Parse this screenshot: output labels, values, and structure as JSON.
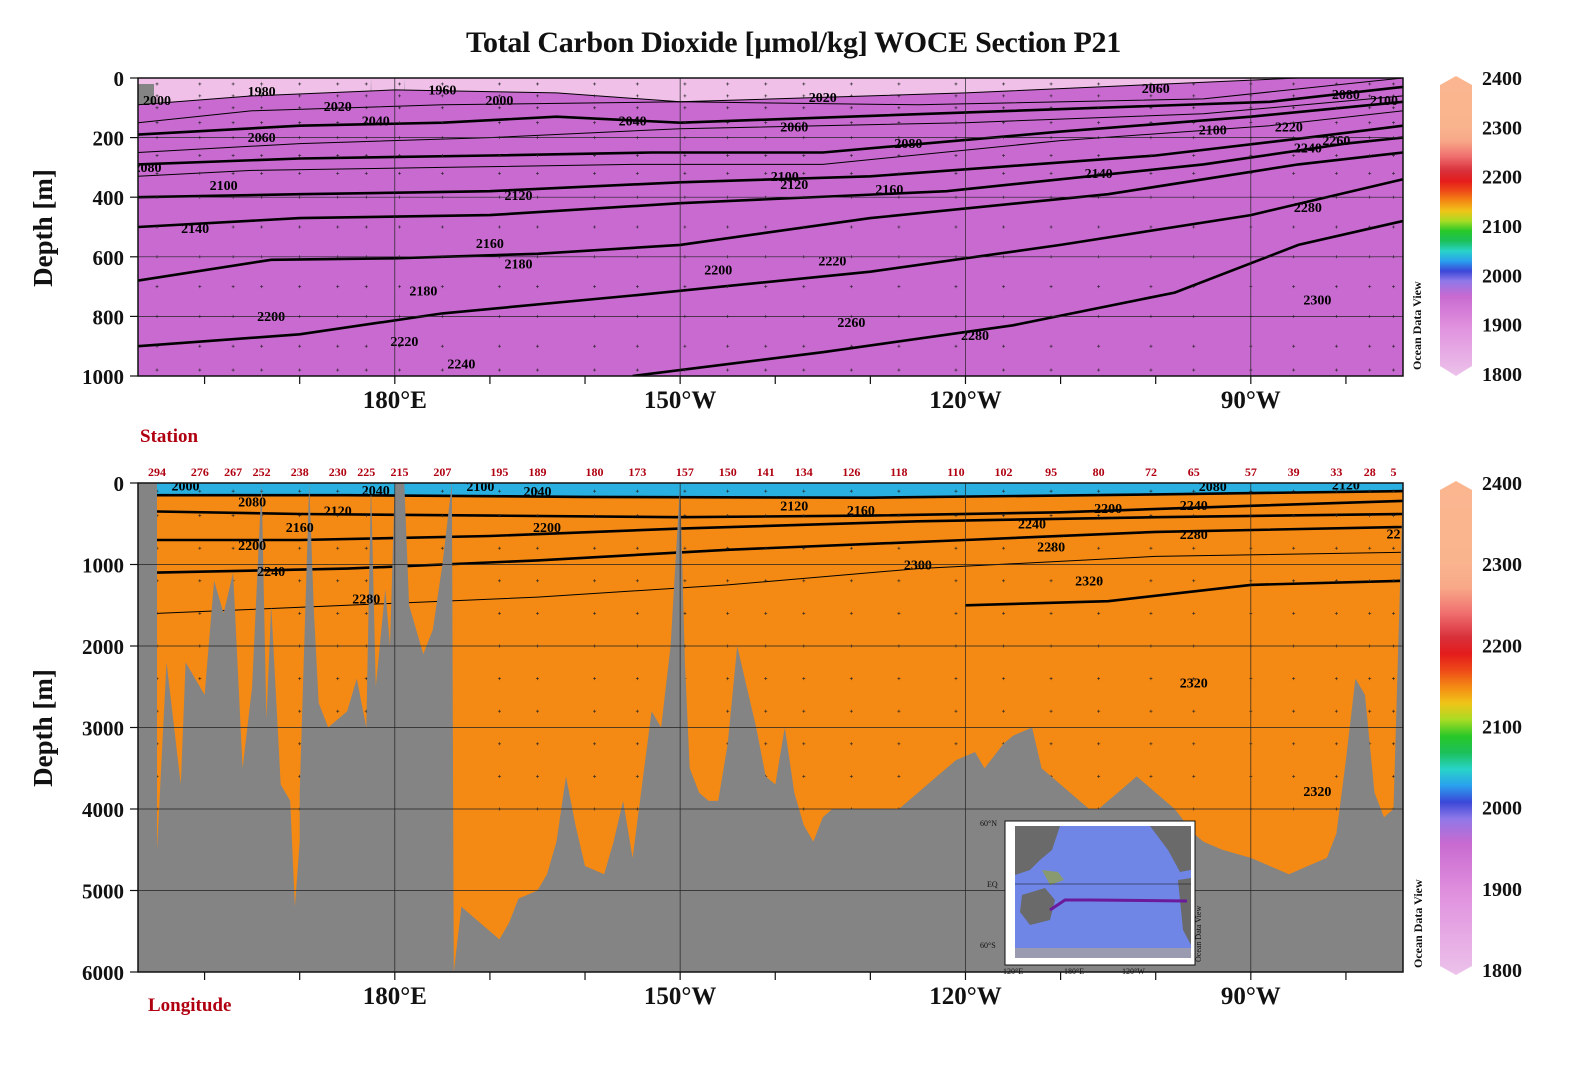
{
  "title": "Total Carbon Dioxide [µmol/kg]  WOCE Section P21",
  "watermark": "Ocean Data View",
  "colors": {
    "land": "#848484",
    "scale": [
      [
        1800,
        "#ecc2ea"
      ],
      [
        1900,
        "#e090de"
      ],
      [
        1960,
        "#c86ad0"
      ],
      [
        1990,
        "#8f78e8"
      ],
      [
        2010,
        "#3a48d8"
      ],
      [
        2030,
        "#2aa0ee"
      ],
      [
        2050,
        "#28d4c8"
      ],
      [
        2070,
        "#1cc05a"
      ],
      [
        2090,
        "#28c828"
      ],
      [
        2110,
        "#a8dc24"
      ],
      [
        2130,
        "#f0c418"
      ],
      [
        2150,
        "#f48a14"
      ],
      [
        2170,
        "#ee4a18"
      ],
      [
        2190,
        "#e41c1c"
      ],
      [
        2210,
        "#d8303a"
      ],
      [
        2240,
        "#f07070"
      ],
      [
        2270,
        "#f8a888"
      ],
      [
        2300,
        "#f9b48e"
      ],
      [
        2400,
        "#fbb690"
      ]
    ]
  },
  "chart_data": [
    {
      "type": "heatmap",
      "panel": "top",
      "ylabel": "Depth [m]",
      "xlabel": "",
      "y_ticks": [
        0,
        200,
        400,
        600,
        800,
        1000
      ],
      "ylim": [
        1000,
        0
      ],
      "x_ticks": [
        "180°E",
        "150°W",
        "120°W",
        "90°W"
      ],
      "x_tick_values": [
        180,
        210,
        240,
        270
      ],
      "xlim": [
        153,
        286
      ],
      "colorbar": {
        "ticks": [
          1800,
          1900,
          2000,
          2100,
          2200,
          2300,
          2400
        ],
        "range": [
          1800,
          2400
        ]
      },
      "isolines": [
        {
          "value": 1980,
          "points": [
            [
              153,
              90
            ],
            [
              165,
              60
            ],
            [
              180,
              40
            ],
            [
              197,
              50
            ],
            [
              210,
              80
            ],
            [
              240,
              50
            ],
            [
              275,
              0
            ]
          ]
        },
        {
          "value": 2020,
          "points": [
            [
              153,
              150
            ],
            [
              165,
              110
            ],
            [
              185,
              90
            ],
            [
              210,
              80
            ],
            [
              235,
              90
            ],
            [
              265,
              70
            ],
            [
              286,
              0
            ]
          ]
        },
        {
          "value": 2040,
          "points": [
            [
              153,
              190
            ],
            [
              170,
              160
            ],
            [
              185,
              150
            ],
            [
              197,
              130
            ],
            [
              210,
              150
            ],
            [
              245,
              110
            ],
            [
              272,
              80
            ],
            [
              286,
              30
            ]
          ]
        },
        {
          "value": 2060,
          "points": [
            [
              153,
              250
            ],
            [
              170,
              220
            ],
            [
              190,
              200
            ],
            [
              210,
              170
            ],
            [
              240,
              150
            ],
            [
              265,
              120
            ],
            [
              286,
              60
            ]
          ]
        },
        {
          "value": 2080,
          "points": [
            [
              153,
              290
            ],
            [
              170,
              270
            ],
            [
              190,
              260
            ],
            [
              207,
              250
            ],
            [
              225,
              250
            ],
            [
              250,
              180
            ],
            [
              270,
              130
            ],
            [
              286,
              80
            ]
          ]
        },
        {
          "value": 2100,
          "points": [
            [
              153,
              330
            ],
            [
              165,
              310
            ],
            [
              185,
              300
            ],
            [
              205,
              290
            ],
            [
              225,
              290
            ],
            [
              250,
              210
            ],
            [
              272,
              160
            ],
            [
              286,
              110
            ]
          ]
        },
        {
          "value": 2120,
          "points": [
            [
              153,
              400
            ],
            [
              170,
              390
            ],
            [
              190,
              380
            ],
            [
              210,
              350
            ],
            [
              230,
              330
            ],
            [
              260,
              260
            ],
            [
              276,
              200
            ],
            [
              286,
              160
            ]
          ]
        },
        {
          "value": 2160,
          "points": [
            [
              153,
              500
            ],
            [
              170,
              470
            ],
            [
              190,
              460
            ],
            [
              210,
              420
            ],
            [
              238,
              380
            ],
            [
              265,
              290
            ],
            [
              280,
              220
            ],
            [
              286,
              200
            ]
          ]
        },
        {
          "value": 2200,
          "points": [
            [
              153,
              680
            ],
            [
              167,
              610
            ],
            [
              180,
              605
            ],
            [
              195,
              590
            ],
            [
              210,
              560
            ],
            [
              230,
              470
            ],
            [
              255,
              390
            ],
            [
              275,
              290
            ],
            [
              286,
              250
            ]
          ]
        },
        {
          "value": 2240,
          "points": [
            [
              153,
              900
            ],
            [
              170,
              860
            ],
            [
              185,
              790
            ],
            [
              205,
              730
            ],
            [
              230,
              650
            ],
            [
              250,
              560
            ],
            [
              270,
              460
            ],
            [
              286,
              340
            ]
          ]
        },
        {
          "value": 2280,
          "points": [
            [
              205,
              1000
            ],
            [
              225,
              920
            ],
            [
              245,
              830
            ],
            [
              262,
              720
            ],
            [
              275,
              560
            ],
            [
              286,
              480
            ]
          ]
        }
      ],
      "contour_labels": [
        {
          "text": "1980",
          "x": 166,
          "y": 60
        },
        {
          "text": "1960",
          "x": 185,
          "y": 55
        },
        {
          "text": "2000",
          "x": 155,
          "y": 90
        },
        {
          "text": "2000",
          "x": 191,
          "y": 90
        },
        {
          "text": "2020",
          "x": 174,
          "y": 110
        },
        {
          "text": "2040",
          "x": 178,
          "y": 160
        },
        {
          "text": "2020",
          "x": 225,
          "y": 80
        },
        {
          "text": "2060",
          "x": 260,
          "y": 50
        },
        {
          "text": "2060",
          "x": 166,
          "y": 215
        },
        {
          "text": "2040",
          "x": 205,
          "y": 160
        },
        {
          "text": "2060",
          "x": 222,
          "y": 180
        },
        {
          "text": "2080",
          "x": 234,
          "y": 235
        },
        {
          "text": "2080",
          "x": 154,
          "y": 315
        },
        {
          "text": "2100",
          "x": 162,
          "y": 375
        },
        {
          "text": "2100",
          "x": 221,
          "y": 345
        },
        {
          "text": "2120",
          "x": 222,
          "y": 372
        },
        {
          "text": "2100",
          "x": 266,
          "y": 190
        },
        {
          "text": "2120",
          "x": 193,
          "y": 410
        },
        {
          "text": "2140",
          "x": 159,
          "y": 520
        },
        {
          "text": "2140",
          "x": 254,
          "y": 335
        },
        {
          "text": "2160",
          "x": 232,
          "y": 390
        },
        {
          "text": "2160",
          "x": 190,
          "y": 570
        },
        {
          "text": "2180",
          "x": 193,
          "y": 640
        },
        {
          "text": "2180",
          "x": 183,
          "y": 730
        },
        {
          "text": "2200",
          "x": 214,
          "y": 660
        },
        {
          "text": "2200",
          "x": 167,
          "y": 815
        },
        {
          "text": "2220",
          "x": 226,
          "y": 630
        },
        {
          "text": "2220",
          "x": 181,
          "y": 900
        },
        {
          "text": "2240",
          "x": 187,
          "y": 975
        },
        {
          "text": "2260",
          "x": 228,
          "y": 835
        },
        {
          "text": "2280",
          "x": 241,
          "y": 880
        },
        {
          "text": "2280",
          "x": 276,
          "y": 450
        },
        {
          "text": "2300",
          "x": 277,
          "y": 760
        },
        {
          "text": "2220",
          "x": 274,
          "y": 180
        },
        {
          "text": "2240",
          "x": 276,
          "y": 250
        },
        {
          "text": "2260",
          "x": 279,
          "y": 225
        },
        {
          "text": "2080",
          "x": 280,
          "y": 70
        },
        {
          "text": "2100",
          "x": 284,
          "y": 90
        }
      ]
    },
    {
      "type": "heatmap",
      "panel": "bottom",
      "ylabel": "Depth [m]",
      "xlabel": "Longitude",
      "station_label": "Station",
      "y_ticks": [
        0,
        1000,
        2000,
        3000,
        4000,
        5000,
        6000
      ],
      "ylim": [
        6000,
        0
      ],
      "x_ticks": [
        "180°E",
        "150°W",
        "120°W",
        "90°W"
      ],
      "x_tick_values": [
        180,
        210,
        240,
        270
      ],
      "xlim": [
        153,
        286
      ],
      "colorbar": {
        "ticks": [
          1800,
          1900,
          2000,
          2100,
          2200,
          2300,
          2400
        ],
        "range": [
          1800,
          2400
        ]
      },
      "stations": [
        {
          "label": "294",
          "x": 155
        },
        {
          "label": "276",
          "x": 159.5
        },
        {
          "label": "267",
          "x": 163
        },
        {
          "label": "252",
          "x": 166
        },
        {
          "label": "238",
          "x": 170
        },
        {
          "label": "230",
          "x": 174
        },
        {
          "label": "225",
          "x": 177
        },
        {
          "label": "215",
          "x": 180.5
        },
        {
          "label": "207",
          "x": 185
        },
        {
          "label": "195",
          "x": 191
        },
        {
          "label": "189",
          "x": 195
        },
        {
          "label": "180",
          "x": 201
        },
        {
          "label": "173",
          "x": 205.5
        },
        {
          "label": "157",
          "x": 210.5
        },
        {
          "label": "150",
          "x": 215
        },
        {
          "label": "141",
          "x": 219
        },
        {
          "label": "134",
          "x": 223
        },
        {
          "label": "126",
          "x": 228
        },
        {
          "label": "118",
          "x": 233
        },
        {
          "label": "110",
          "x": 239
        },
        {
          "label": "102",
          "x": 244
        },
        {
          "label": "95",
          "x": 249
        },
        {
          "label": "80",
          "x": 254
        },
        {
          "label": "72",
          "x": 259.5
        },
        {
          "label": "65",
          "x": 264
        },
        {
          "label": "57",
          "x": 270
        },
        {
          "label": "39",
          "x": 274.5
        },
        {
          "label": "33",
          "x": 279
        },
        {
          "label": "28",
          "x": 282.5
        },
        {
          "label": "5",
          "x": 285
        }
      ],
      "isolines": [
        {
          "value": 2160,
          "points": [
            [
              155,
              150
            ],
            [
              175,
              150
            ],
            [
              200,
              170
            ],
            [
              230,
              180
            ],
            [
              260,
              140
            ],
            [
              286,
              100
            ]
          ]
        },
        {
          "value": 2200,
          "points": [
            [
              155,
              350
            ],
            [
              170,
              380
            ],
            [
              190,
              400
            ],
            [
              210,
              420
            ],
            [
              230,
              400
            ],
            [
              250,
              360
            ],
            [
              270,
              280
            ],
            [
              286,
              220
            ]
          ]
        },
        {
          "value": 2240,
          "points": [
            [
              155,
              700
            ],
            [
              170,
              700
            ],
            [
              190,
              650
            ],
            [
              210,
              560
            ],
            [
              235,
              470
            ],
            [
              260,
              420
            ],
            [
              286,
              380
            ]
          ]
        },
        {
          "value": 2280,
          "points": [
            [
              155,
              1100
            ],
            [
              175,
              1050
            ],
            [
              195,
              950
            ],
            [
              215,
              820
            ],
            [
              240,
              700
            ],
            [
              260,
              600
            ],
            [
              286,
              540
            ]
          ]
        },
        {
          "value": 2300,
          "points": [
            [
              155,
              1600
            ],
            [
              175,
              1500
            ],
            [
              195,
              1400
            ],
            [
              215,
              1250
            ],
            [
              235,
              1050
            ],
            [
              260,
              900
            ],
            [
              286,
              850
            ]
          ]
        },
        {
          "value": 2320,
          "points": [
            [
              240,
              1500
            ],
            [
              255,
              1450
            ],
            [
              270,
              1250
            ],
            [
              286,
              1200
            ]
          ]
        }
      ],
      "contour_labels": [
        {
          "text": "2000",
          "x": 158,
          "y": 90
        },
        {
          "text": "2040",
          "x": 178,
          "y": 150
        },
        {
          "text": "2100",
          "x": 189,
          "y": 100
        },
        {
          "text": "2040",
          "x": 195,
          "y": 160
        },
        {
          "text": "2080",
          "x": 165,
          "y": 290
        },
        {
          "text": "2120",
          "x": 174,
          "y": 400
        },
        {
          "text": "2160",
          "x": 170,
          "y": 600
        },
        {
          "text": "2120",
          "x": 222,
          "y": 340
        },
        {
          "text": "2160",
          "x": 229,
          "y": 390
        },
        {
          "text": "2200",
          "x": 196,
          "y": 600
        },
        {
          "text": "2200",
          "x": 165,
          "y": 820
        },
        {
          "text": "2240",
          "x": 167,
          "y": 1140
        },
        {
          "text": "2280",
          "x": 177,
          "y": 1480
        },
        {
          "text": "2200",
          "x": 255,
          "y": 370
        },
        {
          "text": "2240",
          "x": 247,
          "y": 560
        },
        {
          "text": "2280",
          "x": 249,
          "y": 840
        },
        {
          "text": "2280",
          "x": 264,
          "y": 690
        },
        {
          "text": "2240",
          "x": 264,
          "y": 330
        },
        {
          "text": "2080",
          "x": 266,
          "y": 100
        },
        {
          "text": "2120",
          "x": 280,
          "y": 80
        },
        {
          "text": "2300",
          "x": 235,
          "y": 1060
        },
        {
          "text": "2320",
          "x": 253,
          "y": 1260
        },
        {
          "text": "2320",
          "x": 264,
          "y": 2510
        },
        {
          "text": "2320",
          "x": 277,
          "y": 3840
        },
        {
          "text": "22",
          "x": 285,
          "y": 680
        }
      ]
    }
  ],
  "inset_map": {
    "lat_labels": [
      "60°N",
      "EQ",
      "60°S"
    ],
    "lon_labels": [
      "120°E",
      "180°E",
      "120°W"
    ],
    "watermark": "Ocean Data View"
  }
}
